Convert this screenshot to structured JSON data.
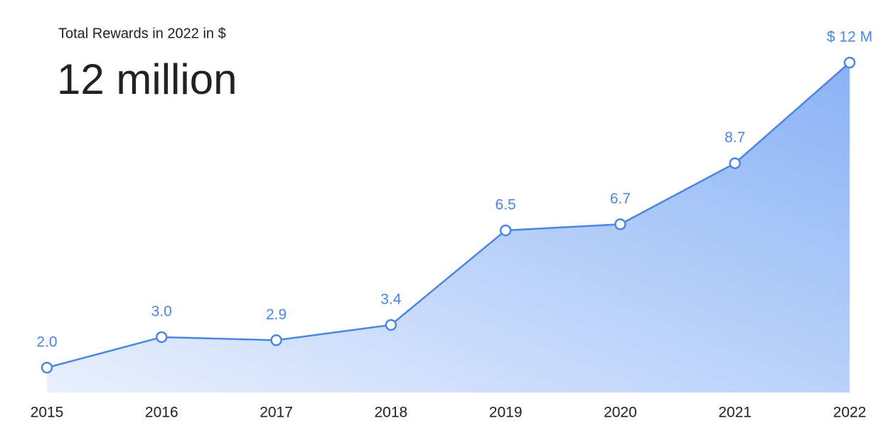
{
  "chart_data": {
    "type": "line",
    "title": "Total Rewards in 2022 in $",
    "subtitle": "12 million",
    "categories": [
      "2015",
      "2016",
      "2017",
      "2018",
      "2019",
      "2020",
      "2021",
      "2022"
    ],
    "values": [
      2.0,
      3.0,
      2.9,
      3.4,
      6.5,
      6.7,
      8.7,
      12
    ],
    "value_labels": [
      "2.0",
      "3.0",
      "2.9",
      "3.4",
      "6.5",
      "6.7",
      "8.7",
      "$ 12 M"
    ],
    "color": "#4a86e0",
    "area": true
  }
}
